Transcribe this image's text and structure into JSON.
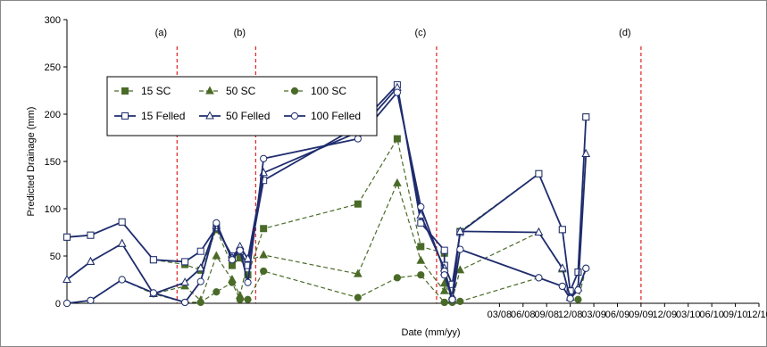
{
  "chart_data": {
    "type": "line",
    "xlabel": "Date (mm/yy)",
    "ylabel": "Predicted Drainage (mm)",
    "ylim": [
      0,
      300
    ],
    "xlim": [
      "2003-08",
      "2010-12"
    ],
    "y_ticks": [
      "0",
      "50",
      "100",
      "150",
      "200",
      "250",
      "300"
    ],
    "x_ticks": [
      "03/08",
      "06/08",
      "09/08",
      "12/08",
      "03/09",
      "06/09",
      "09/09",
      "12/09",
      "03/10",
      "06/10",
      "09/10",
      "12/10"
    ],
    "grid": false,
    "legend_position": "top-left",
    "event_lines": [
      {
        "label": "(a)",
        "x": "2004-10"
      },
      {
        "label": "(b)",
        "x": "2005-08"
      },
      {
        "label": "(c)",
        "x": "2007-07"
      },
      {
        "label": "(d)",
        "x": "2009-09"
      }
    ],
    "series": [
      {
        "name": "15 SC",
        "color": "#4a6b28",
        "style": "dashed",
        "marker": "square-filled",
        "points": [
          [
            "2003-08",
            70
          ],
          [
            "2003-11",
            72
          ],
          [
            "2004-03",
            86
          ],
          [
            "2004-07",
            46
          ],
          [
            "2004-11",
            41
          ],
          [
            "2005-01",
            35
          ],
          [
            "2005-03",
            78
          ],
          [
            "2005-05",
            40
          ],
          [
            "2005-06",
            48
          ],
          [
            "2005-07",
            30
          ],
          [
            "2005-09",
            79
          ],
          [
            "2006-09",
            105
          ],
          [
            "2007-02",
            174
          ],
          [
            "2007-05",
            60
          ],
          [
            "2007-08",
            53
          ],
          [
            "2007-08",
            40
          ],
          [
            "2007-09",
            3
          ],
          [
            "2007-10",
            76
          ],
          [
            "2008-08",
            137
          ],
          [
            "2008-11",
            78
          ],
          [
            "2008-12",
            13
          ],
          [
            "2009-01",
            33
          ],
          [
            "2009-02",
            197
          ]
        ]
      },
      {
        "name": "50 SC",
        "color": "#4a6b28",
        "style": "dashed",
        "marker": "triangle-filled",
        "points": [
          [
            "2003-08",
            25
          ],
          [
            "2003-11",
            44
          ],
          [
            "2004-03",
            63
          ],
          [
            "2004-07",
            10
          ],
          [
            "2004-11",
            18
          ],
          [
            "2005-01",
            3
          ],
          [
            "2005-03",
            50
          ],
          [
            "2005-05",
            25
          ],
          [
            "2005-06",
            8
          ],
          [
            "2005-07",
            45
          ],
          [
            "2005-09",
            51
          ],
          [
            "2006-09",
            31
          ],
          [
            "2007-02",
            127
          ],
          [
            "2007-05",
            45
          ],
          [
            "2007-08",
            13
          ],
          [
            "2007-08",
            21
          ],
          [
            "2007-09",
            4
          ],
          [
            "2007-10",
            35
          ],
          [
            "2008-08",
            75
          ],
          [
            "2008-11",
            36
          ],
          [
            "2008-12",
            6
          ],
          [
            "2009-01",
            16
          ],
          [
            "2009-02",
            158
          ]
        ]
      },
      {
        "name": "100 SC",
        "color": "#4a6b28",
        "style": "dashed",
        "marker": "circle-filled",
        "points": [
          [
            "2003-08",
            0
          ],
          [
            "2003-11",
            3
          ],
          [
            "2004-03",
            25
          ],
          [
            "2004-07",
            10
          ],
          [
            "2004-11",
            1
          ],
          [
            "2005-01",
            1
          ],
          [
            "2005-03",
            12
          ],
          [
            "2005-05",
            22
          ],
          [
            "2005-06",
            4
          ],
          [
            "2005-07",
            4
          ],
          [
            "2005-09",
            34
          ],
          [
            "2006-09",
            6
          ],
          [
            "2007-02",
            27
          ],
          [
            "2007-05",
            30
          ],
          [
            "2007-08",
            1
          ],
          [
            "2007-08",
            1
          ],
          [
            "2007-09",
            1
          ],
          [
            "2007-10",
            2
          ],
          [
            "2008-08",
            27
          ],
          [
            "2008-11",
            18
          ],
          [
            "2008-12",
            5
          ],
          [
            "2009-01",
            4
          ],
          [
            "2009-02",
            37
          ]
        ]
      },
      {
        "name": "15 Felled",
        "color": "#1f2d6e",
        "style": "solid",
        "marker": "square-open",
        "points": [
          [
            "2003-08",
            70
          ],
          [
            "2003-11",
            72
          ],
          [
            "2004-03",
            86
          ],
          [
            "2004-07",
            46
          ],
          [
            "2004-11",
            44
          ],
          [
            "2005-01",
            55
          ],
          [
            "2005-03",
            80
          ],
          [
            "2005-05",
            50
          ],
          [
            "2005-06",
            55
          ],
          [
            "2005-07",
            40
          ],
          [
            "2005-09",
            130
          ],
          [
            "2006-09",
            187
          ],
          [
            "2007-02",
            231
          ],
          [
            "2007-05",
            85
          ],
          [
            "2007-08",
            56
          ],
          [
            "2007-08",
            40
          ],
          [
            "2007-09",
            20
          ],
          [
            "2007-10",
            75
          ],
          [
            "2008-08",
            137
          ],
          [
            "2008-11",
            78
          ],
          [
            "2008-12",
            13
          ],
          [
            "2009-01",
            33
          ],
          [
            "2009-02",
            197
          ]
        ]
      },
      {
        "name": "50 Felled",
        "color": "#1f2d6e",
        "style": "solid",
        "marker": "triangle-open",
        "points": [
          [
            "2003-08",
            25
          ],
          [
            "2003-11",
            44
          ],
          [
            "2004-03",
            63
          ],
          [
            "2004-07",
            10
          ],
          [
            "2004-11",
            22
          ],
          [
            "2005-01",
            37
          ],
          [
            "2005-03",
            82
          ],
          [
            "2005-05",
            48
          ],
          [
            "2005-06",
            60
          ],
          [
            "2005-07",
            47
          ],
          [
            "2005-09",
            138
          ],
          [
            "2006-09",
            181
          ],
          [
            "2007-02",
            228
          ],
          [
            "2007-05",
            93
          ],
          [
            "2007-08",
            37
          ],
          [
            "2007-08",
            33
          ],
          [
            "2007-09",
            7
          ],
          [
            "2007-10",
            76
          ],
          [
            "2008-08",
            75
          ],
          [
            "2008-11",
            37
          ],
          [
            "2008-12",
            6
          ],
          [
            "2009-01",
            16
          ],
          [
            "2009-02",
            158
          ]
        ]
      },
      {
        "name": "100 Felled",
        "color": "#1f2d6e",
        "style": "solid",
        "marker": "circle-open",
        "points": [
          [
            "2003-08",
            0
          ],
          [
            "2003-11",
            3
          ],
          [
            "2004-03",
            25
          ],
          [
            "2004-07",
            11
          ],
          [
            "2004-11",
            1
          ],
          [
            "2005-01",
            23
          ],
          [
            "2005-03",
            85
          ],
          [
            "2005-05",
            46
          ],
          [
            "2005-06",
            56
          ],
          [
            "2005-07",
            22
          ],
          [
            "2005-09",
            153
          ],
          [
            "2006-09",
            174
          ],
          [
            "2007-02",
            223
          ],
          [
            "2007-05",
            102
          ],
          [
            "2007-08",
            34
          ],
          [
            "2007-08",
            30
          ],
          [
            "2007-09",
            4
          ],
          [
            "2007-10",
            57
          ],
          [
            "2008-08",
            27
          ],
          [
            "2008-11",
            18
          ],
          [
            "2008-12",
            5
          ],
          [
            "2009-01",
            14
          ],
          [
            "2009-02",
            37
          ]
        ]
      }
    ]
  }
}
